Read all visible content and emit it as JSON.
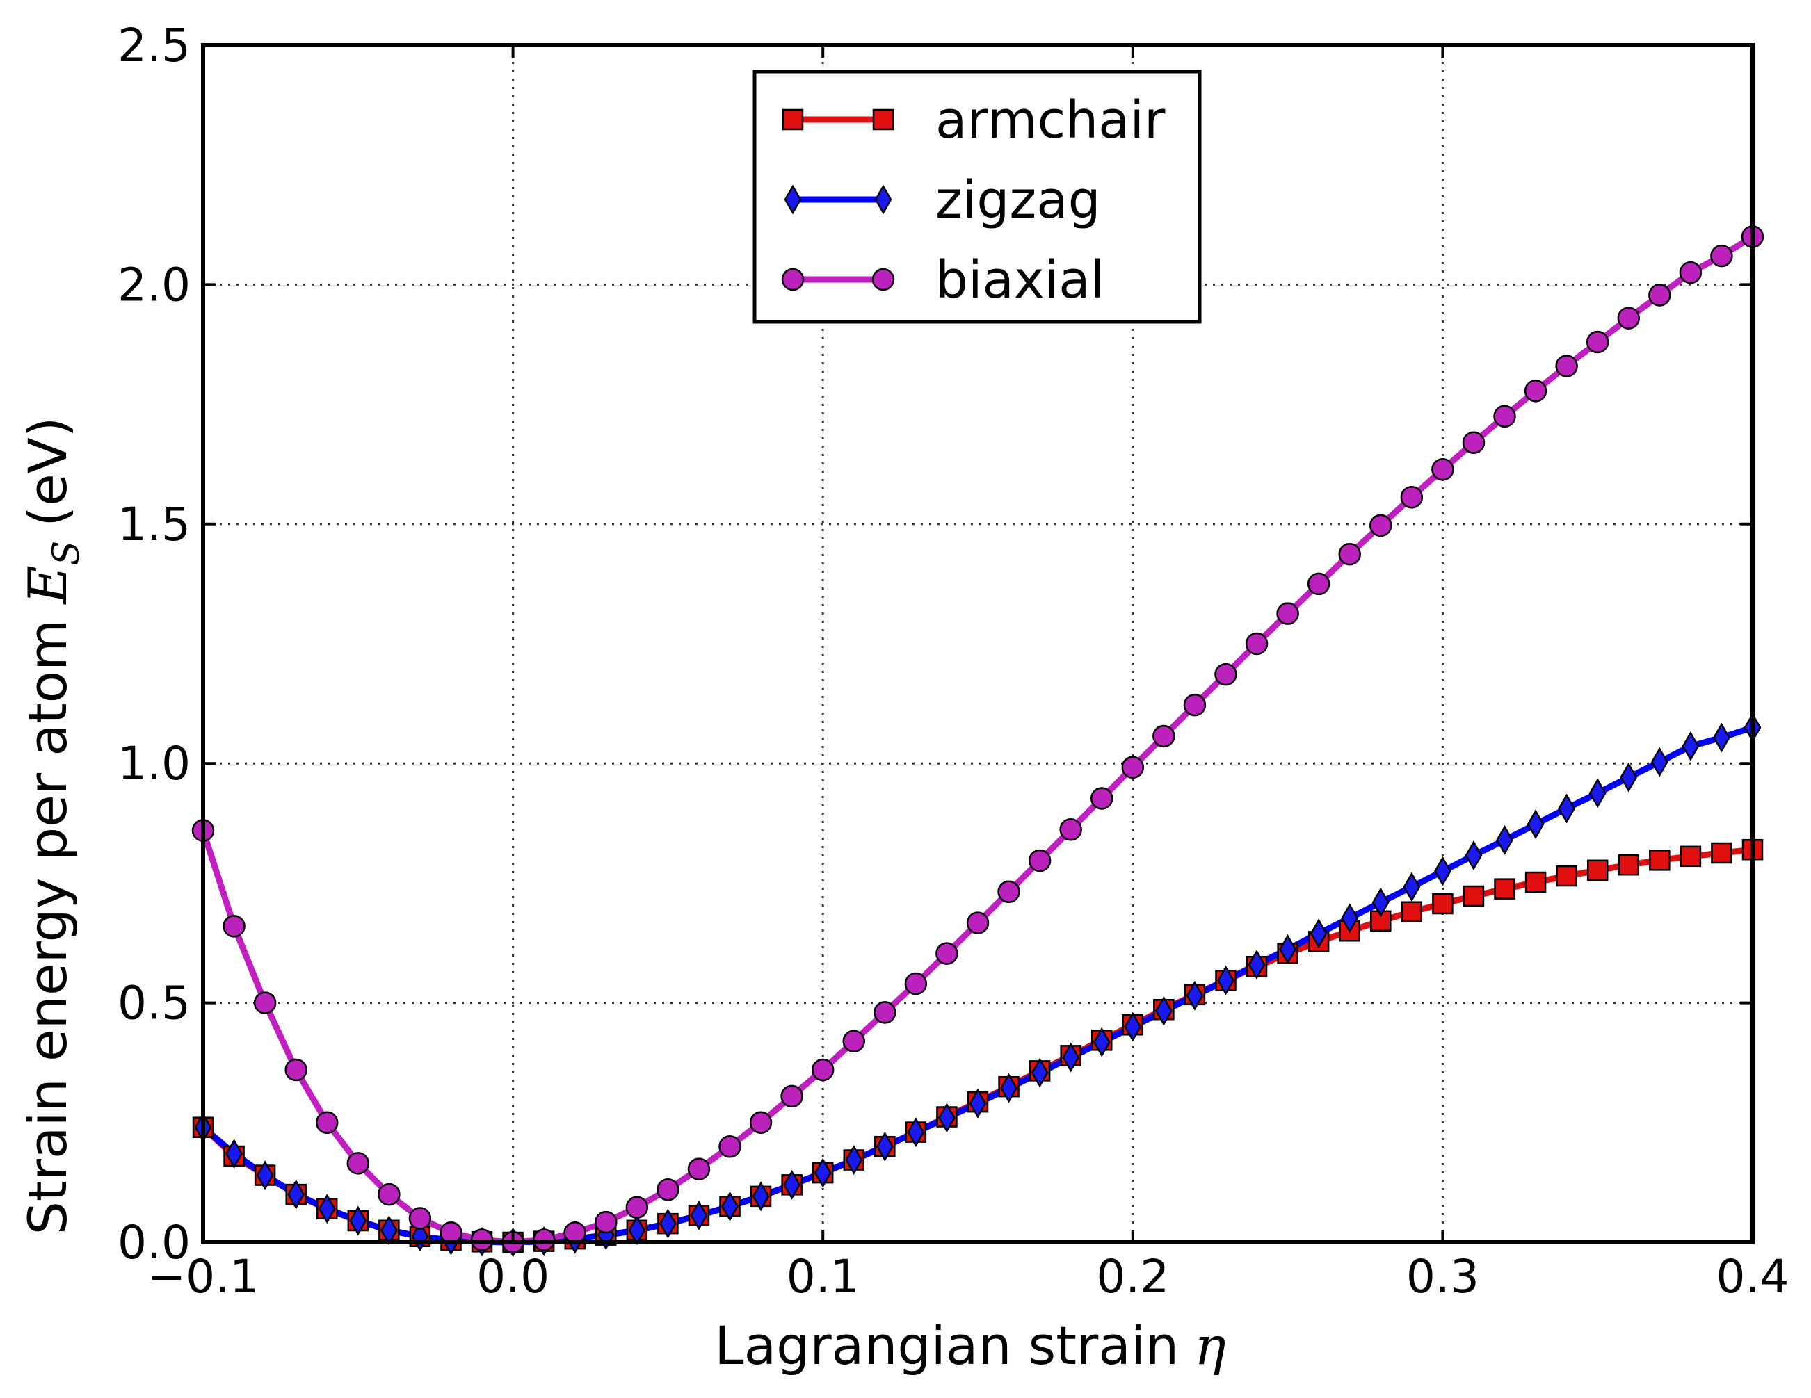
{
  "chart_data": {
    "type": "line",
    "xlabel": "Lagrangian strain",
    "xlabel_symbol": "η",
    "ylabel": "Strain energy per atom",
    "ylabel_symbol": "E",
    "ylabel_subscript": "S",
    "ylabel_unit": "(eV)",
    "xlim": [
      -0.1,
      0.4
    ],
    "ylim": [
      0.0,
      2.5
    ],
    "xticks": [
      "−0.1",
      "0.0",
      "0.1",
      "0.2",
      "0.3",
      "0.4"
    ],
    "yticks": [
      "0.0",
      "0.5",
      "1.0",
      "1.5",
      "2.0",
      "2.5"
    ],
    "grid": true,
    "legend_position": "top-center",
    "x": [
      -0.1,
      -0.09,
      -0.08,
      -0.07,
      -0.06,
      -0.05,
      -0.04,
      -0.03,
      -0.02,
      -0.01,
      0.0,
      0.01,
      0.02,
      0.03,
      0.04,
      0.05,
      0.06,
      0.07,
      0.08,
      0.09,
      0.1,
      0.11,
      0.12,
      0.13,
      0.14,
      0.15,
      0.16,
      0.17,
      0.18,
      0.19,
      0.2,
      0.21,
      0.22,
      0.23,
      0.24,
      0.25,
      0.26,
      0.27,
      0.28,
      0.29,
      0.3,
      0.31,
      0.32,
      0.33,
      0.34,
      0.35,
      0.36,
      0.37,
      0.38,
      0.39,
      0.4
    ],
    "series": [
      {
        "name": "armchair",
        "color": "#e01010",
        "line_color": "#dd1111",
        "marker": "square",
        "values": [
          0.24,
          0.18,
          0.14,
          0.1,
          0.07,
          0.045,
          0.025,
          0.012,
          0.004,
          0.001,
          0.0,
          0.002,
          0.007,
          0.015,
          0.025,
          0.039,
          0.056,
          0.075,
          0.096,
          0.12,
          0.145,
          0.172,
          0.2,
          0.23,
          0.262,
          0.293,
          0.325,
          0.358,
          0.39,
          0.422,
          0.454,
          0.486,
          0.517,
          0.547,
          0.576,
          0.603,
          0.628,
          0.65,
          0.671,
          0.69,
          0.707,
          0.723,
          0.738,
          0.752,
          0.765,
          0.777,
          0.788,
          0.798,
          0.806,
          0.813,
          0.82
        ]
      },
      {
        "name": "zigzag",
        "color": "#1a1aee",
        "line_color": "#0000ff",
        "marker": "thin-diamond",
        "values": [
          0.24,
          0.185,
          0.14,
          0.1,
          0.07,
          0.045,
          0.025,
          0.012,
          0.004,
          0.001,
          0.0,
          0.002,
          0.007,
          0.015,
          0.025,
          0.039,
          0.056,
          0.075,
          0.096,
          0.12,
          0.145,
          0.172,
          0.2,
          0.23,
          0.26,
          0.29,
          0.322,
          0.354,
          0.386,
          0.418,
          0.45,
          0.483,
          0.515,
          0.547,
          0.58,
          0.612,
          0.645,
          0.677,
          0.71,
          0.742,
          0.775,
          0.808,
          0.84,
          0.873,
          0.906,
          0.938,
          0.971,
          1.003,
          1.036,
          1.054,
          1.075
        ]
      },
      {
        "name": "biaxial",
        "color": "#bb22bb",
        "line_color": "#c020c0",
        "marker": "circle",
        "values": [
          0.86,
          0.66,
          0.5,
          0.36,
          0.25,
          0.165,
          0.1,
          0.05,
          0.02,
          0.005,
          0.0,
          0.005,
          0.02,
          0.042,
          0.073,
          0.11,
          0.153,
          0.2,
          0.25,
          0.305,
          0.36,
          0.42,
          0.48,
          0.54,
          0.603,
          0.667,
          0.732,
          0.797,
          0.862,
          0.927,
          0.992,
          1.057,
          1.122,
          1.186,
          1.25,
          1.313,
          1.375,
          1.437,
          1.497,
          1.556,
          1.614,
          1.67,
          1.725,
          1.778,
          1.83,
          1.88,
          1.93,
          1.978,
          2.025,
          2.06,
          2.1
        ]
      }
    ]
  }
}
